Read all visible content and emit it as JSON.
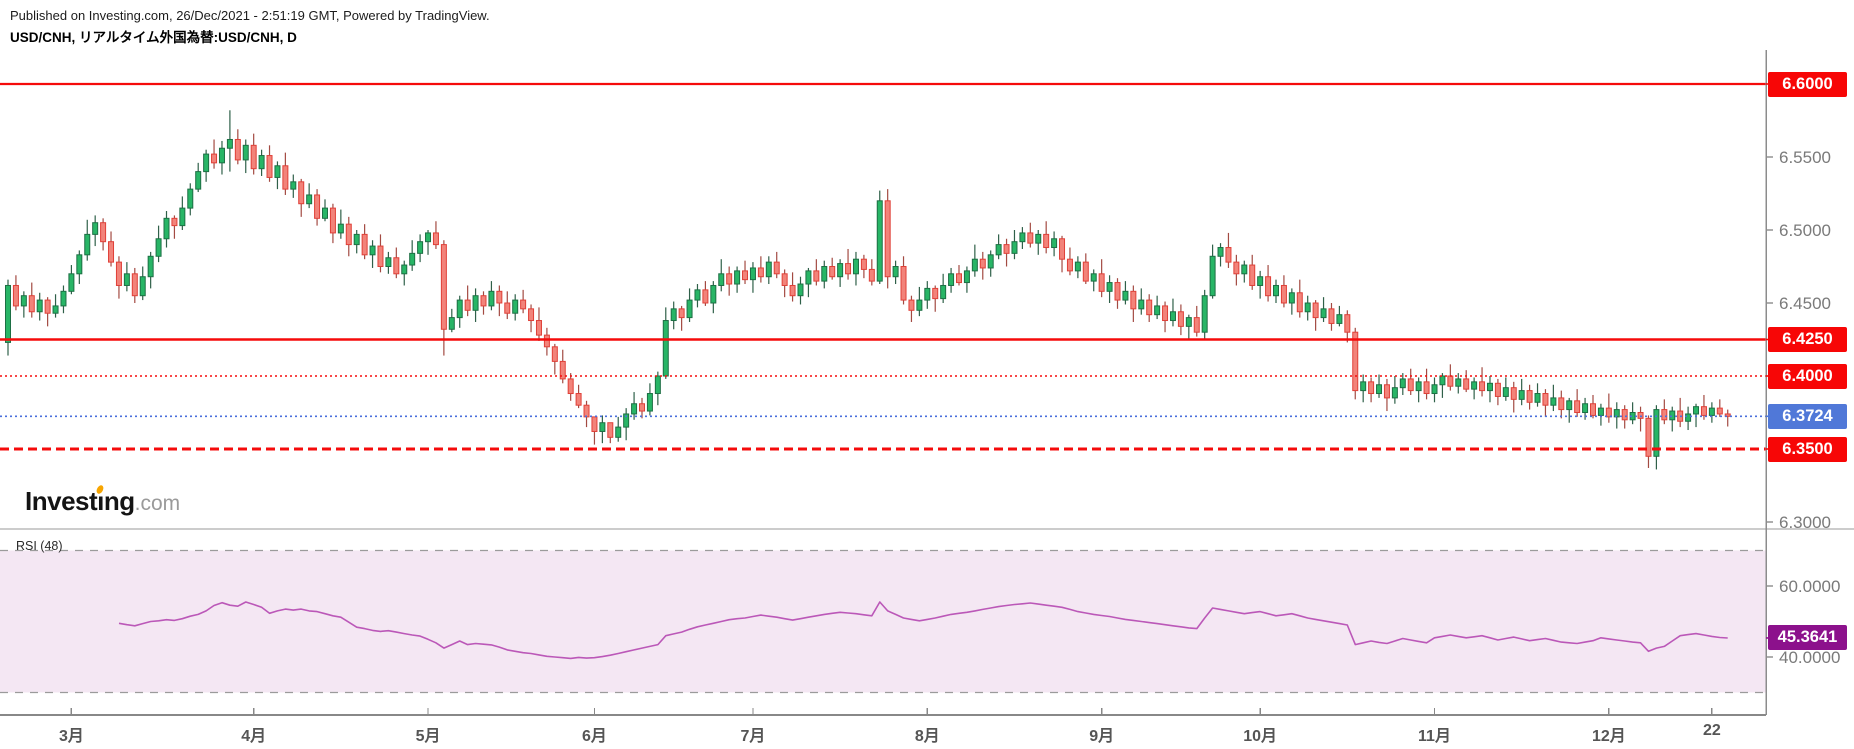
{
  "header": {
    "published_line": "Published on Investing.com, 26/Dec/2021 - 2:51:19 GMT, Powered by TradingView.",
    "instrument_line": "USD/CNH, リアルタイム外国為替:USD/CNH, D"
  },
  "logo": {
    "brand_head": "Invest",
    "brand_i": "ı",
    "brand_tail": "ng",
    "suffix": ".com"
  },
  "colors": {
    "up_fill": "#28b566",
    "up_border": "#1d6f44",
    "up_wick": "#2f6049",
    "down_fill": "#f2837a",
    "down_border": "#e04038",
    "down_wick": "#a34a42",
    "line_red": "#f50b0b",
    "box_red": "#f70606",
    "line_blue": "#4a6fdc",
    "box_blue": "#5078d8",
    "box_purple": "#8c118c",
    "rsi_line": "#bb58b8",
    "rsi_band": "#f4e7f3",
    "axis_gray": "#8c8c8c",
    "label_gray": "#7a7a7a",
    "month_gray": "#555555",
    "dash_gray": "#9b9b9b"
  },
  "price_scale": {
    "gray_labels": [
      {
        "text": "6.5500",
        "price": 6.55
      },
      {
        "text": "6.5000",
        "price": 6.5
      },
      {
        "text": "6.4500",
        "price": 6.45
      },
      {
        "text": "6.3000",
        "price": 6.3
      }
    ],
    "line_boxes": [
      {
        "text": "6.6000",
        "price": 6.6,
        "kind": "red"
      },
      {
        "text": "6.4250",
        "price": 6.425,
        "kind": "red"
      },
      {
        "text": "6.4000",
        "price": 6.4,
        "kind": "red"
      },
      {
        "text": "6.3724",
        "price": 6.3724,
        "kind": "blue"
      },
      {
        "text": "6.3500",
        "price": 6.35,
        "kind": "red"
      }
    ]
  },
  "rsi_scale": {
    "title": "RSI (48)",
    "gray_labels": [
      {
        "text": "60.0000",
        "value": 60
      },
      {
        "text": "40.0000",
        "value": 40
      }
    ],
    "value_box": {
      "text": "45.3641",
      "value": 45.3641
    }
  },
  "chart_data": {
    "type": "candlestick",
    "title": "USD/CNH daily with RSI(48) sub-panel",
    "timeframe": "D",
    "x_tick_labels": [
      {
        "label": "3月",
        "index": 8
      },
      {
        "label": "4月",
        "index": 31
      },
      {
        "label": "5月",
        "index": 53
      },
      {
        "label": "6月",
        "index": 74
      },
      {
        "label": "7月",
        "index": 94
      },
      {
        "label": "8月",
        "index": 116
      },
      {
        "label": "9月",
        "index": 138
      },
      {
        "label": "10月",
        "index": 158
      },
      {
        "label": "11月",
        "index": 180
      },
      {
        "label": "12月",
        "index": 202
      },
      {
        "label": "22",
        "index": 215
      }
    ],
    "main_y_range": [
      6.295,
      6.623
    ],
    "rsi_y_range": [
      24,
      76
    ],
    "horizontal_lines": [
      {
        "price": 6.6,
        "style": "solid",
        "color": "#f50b0b",
        "width": 2.2
      },
      {
        "price": 6.425,
        "style": "solid",
        "color": "#f50b0b",
        "width": 2.6
      },
      {
        "price": 6.4,
        "style": "dotted",
        "color": "#f50b0b",
        "width": 1.6
      },
      {
        "price": 6.3724,
        "style": "dotted",
        "color": "#4a6fdc",
        "width": 1.6
      },
      {
        "price": 6.35,
        "style": "dashed",
        "color": "#f50b0b",
        "width": 3.0
      }
    ],
    "rsi_dashed_levels": [
      70,
      30
    ],
    "last_price": 6.3724,
    "rsi_last_value": 45.3641,
    "first_open": 6.423,
    "closes": [
      6.462,
      6.448,
      6.455,
      6.444,
      6.452,
      6.443,
      6.448,
      6.458,
      6.47,
      6.483,
      6.497,
      6.505,
      6.492,
      6.478,
      6.462,
      6.47,
      6.455,
      6.468,
      6.482,
      6.494,
      6.508,
      6.503,
      6.515,
      6.528,
      6.54,
      6.552,
      6.546,
      6.556,
      6.562,
      6.548,
      6.558,
      6.542,
      6.551,
      6.536,
      6.544,
      6.528,
      6.533,
      6.518,
      6.524,
      6.508,
      6.515,
      6.498,
      6.504,
      6.49,
      6.497,
      6.483,
      6.489,
      6.475,
      6.481,
      6.47,
      6.476,
      6.484,
      6.492,
      6.498,
      6.49,
      6.432,
      6.44,
      6.452,
      6.445,
      6.455,
      6.448,
      6.458,
      6.45,
      6.443,
      6.452,
      6.446,
      6.438,
      6.428,
      6.42,
      6.41,
      6.398,
      6.388,
      6.38,
      6.372,
      6.362,
      6.368,
      6.358,
      6.365,
      6.374,
      6.381,
      6.376,
      6.388,
      6.4,
      6.438,
      6.446,
      6.44,
      6.452,
      6.459,
      6.45,
      6.462,
      6.47,
      6.463,
      6.472,
      6.466,
      6.474,
      6.468,
      6.478,
      6.47,
      6.462,
      6.455,
      6.463,
      6.472,
      6.465,
      6.475,
      6.468,
      6.477,
      6.47,
      6.48,
      6.473,
      6.465,
      6.52,
      6.468,
      6.475,
      6.452,
      6.445,
      6.452,
      6.46,
      6.453,
      6.462,
      6.47,
      6.464,
      6.472,
      6.48,
      6.474,
      6.483,
      6.49,
      6.484,
      6.492,
      6.498,
      6.491,
      6.497,
      6.488,
      6.494,
      6.48,
      6.472,
      6.478,
      6.465,
      6.47,
      6.458,
      6.464,
      6.452,
      6.458,
      6.446,
      6.452,
      6.442,
      6.448,
      6.438,
      6.444,
      6.434,
      6.44,
      6.43,
      6.455,
      6.482,
      6.488,
      6.478,
      6.47,
      6.476,
      6.462,
      6.468,
      6.455,
      6.462,
      6.45,
      6.457,
      6.444,
      6.45,
      6.44,
      6.446,
      6.436,
      6.442,
      6.43,
      6.39,
      6.396,
      6.388,
      6.394,
      6.385,
      6.392,
      6.398,
      6.39,
      6.396,
      6.388,
      6.394,
      6.4,
      6.393,
      6.398,
      6.391,
      6.396,
      6.39,
      6.395,
      6.386,
      6.392,
      6.384,
      6.39,
      6.382,
      6.388,
      6.38,
      6.385,
      6.377,
      6.383,
      6.375,
      6.381,
      6.373,
      6.378,
      6.372,
      6.377,
      6.37,
      6.375,
      6.371,
      6.345,
      6.377,
      6.37,
      6.376,
      6.369,
      6.374,
      6.379,
      6.373,
      6.378,
      6.374,
      6.3724
    ],
    "wick_up_cycle": [
      4,
      7,
      3,
      9,
      5,
      2,
      8,
      4,
      6,
      3,
      10,
      5,
      3,
      7,
      4,
      8
    ],
    "wick_dn_cycle": [
      5,
      3,
      8,
      4,
      6,
      9,
      3,
      5,
      2,
      7,
      4,
      8,
      6,
      3,
      9,
      4
    ],
    "wick_overrides": {
      "0": [
        6.466,
        6.414
      ],
      "28": [
        6.582,
        6.54
      ],
      "55": [
        6.493,
        6.414
      ],
      "74": [
        6.37,
        6.353
      ],
      "76": [
        6.364,
        6.354
      ],
      "83": [
        6.447,
        6.398
      ],
      "110": [
        6.527,
        6.463
      ],
      "111": [
        6.528,
        6.46
      ],
      "152": [
        6.49,
        6.453
      ],
      "170": [
        6.433,
        6.384
      ],
      "207": [
        6.373,
        6.337
      ],
      "208": [
        6.38,
        6.336
      ]
    },
    "rsi_series_start_index": 14,
    "rsi_series": [
      49.5,
      49.1,
      48.8,
      49.4,
      50.0,
      50.2,
      50.5,
      50.3,
      50.8,
      51.5,
      52.0,
      53.0,
      54.5,
      55.3,
      54.6,
      54.3,
      55.5,
      54.8,
      54.0,
      52.3,
      53.0,
      53.5,
      53.2,
      53.5,
      53.0,
      52.8,
      52.2,
      51.6,
      51.2,
      49.8,
      48.4,
      48.0,
      47.5,
      47.2,
      47.4,
      47.0,
      46.6,
      46.2,
      45.9,
      45.0,
      44.0,
      42.5,
      43.5,
      44.5,
      43.5,
      43.8,
      43.6,
      43.4,
      42.8,
      42.0,
      41.6,
      41.2,
      41.0,
      40.6,
      40.2,
      40.0,
      39.8,
      39.6,
      39.9,
      39.7,
      39.8,
      40.1,
      40.5,
      41.0,
      41.5,
      42.0,
      42.5,
      43.0,
      43.5,
      46.0,
      46.5,
      47.0,
      47.8,
      48.5,
      49.0,
      49.5,
      50.0,
      50.5,
      50.8,
      51.0,
      51.4,
      51.8,
      51.5,
      51.2,
      50.8,
      50.4,
      50.8,
      51.2,
      51.6,
      52.0,
      52.3,
      52.6,
      52.4,
      52.2,
      51.9,
      51.6,
      55.5,
      53.0,
      52.0,
      51.0,
      50.6,
      50.2,
      50.6,
      51.0,
      51.5,
      52.0,
      52.3,
      52.6,
      53.0,
      53.4,
      53.8,
      54.2,
      54.5,
      54.8,
      55.0,
      55.2,
      54.9,
      54.6,
      54.3,
      54.0,
      53.4,
      52.8,
      52.4,
      52.0,
      51.7,
      51.4,
      51.0,
      50.6,
      50.3,
      50.0,
      49.7,
      49.4,
      49.1,
      48.8,
      48.5,
      48.2,
      48.0,
      51.0,
      53.8,
      53.4,
      53.0,
      52.6,
      52.2,
      52.5,
      52.8,
      52.2,
      51.6,
      51.9,
      52.2,
      51.6,
      51.0,
      50.6,
      50.2,
      49.8,
      49.4,
      49.0,
      43.5,
      44.0,
      44.5,
      44.1,
      43.8,
      44.5,
      45.2,
      44.8,
      44.4,
      44.0,
      45.4,
      45.8,
      46.2,
      45.8,
      45.4,
      45.7,
      46.0,
      45.4,
      44.8,
      45.2,
      45.6,
      45.1,
      44.6,
      44.9,
      45.2,
      44.7,
      44.2,
      44.0,
      43.8,
      44.2,
      44.6,
      45.4,
      45.1,
      44.8,
      44.5,
      44.2,
      44.0,
      41.6,
      42.5,
      43.0,
      44.5,
      46.0,
      46.3,
      46.6,
      46.2,
      45.8,
      45.5,
      45.36
    ]
  }
}
